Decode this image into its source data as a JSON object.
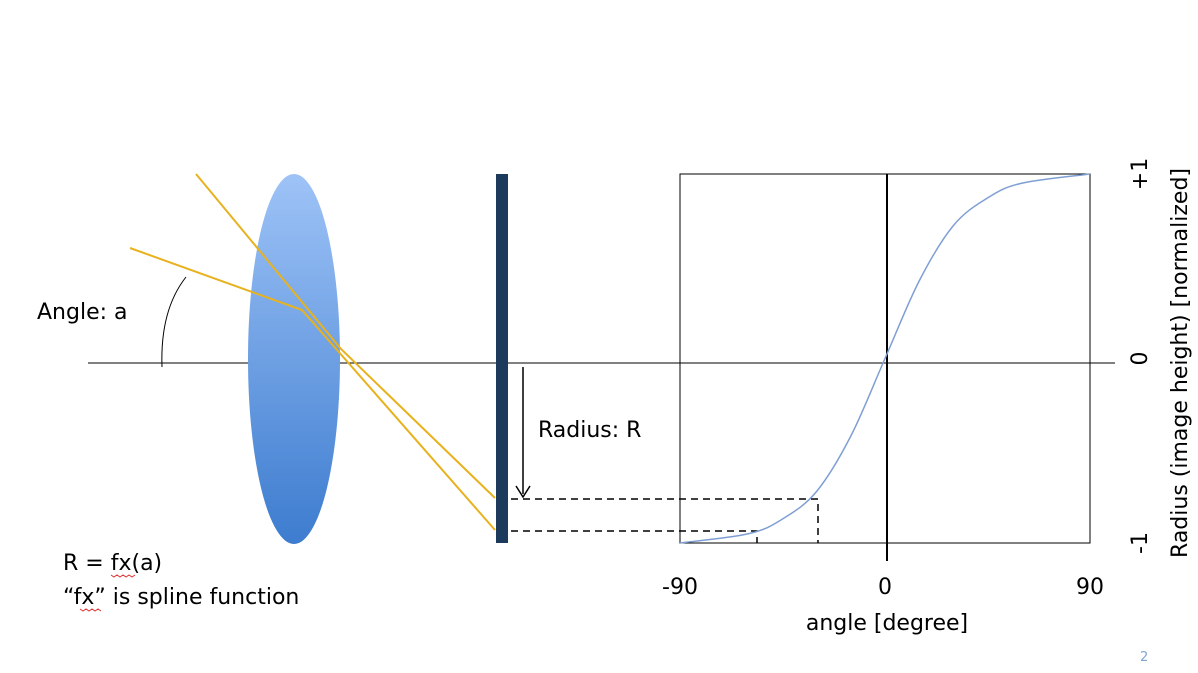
{
  "slide": {
    "page_number": "2",
    "angle_label": "Angle: a",
    "radius_label": "Radius: R",
    "formula": {
      "line1_prefix": "R = ",
      "line1_fx": "fx",
      "line1_suffix": "(a)",
      "line2_open": "“",
      "line2_fx": "fx",
      "line2_rest": "” is spline function"
    }
  },
  "chart_data": {
    "type": "line",
    "xlabel": "angle [degree]",
    "ylabel": "Radius (image height) [normalized]",
    "xlim": [
      -90,
      90
    ],
    "ylim": [
      -1,
      1
    ],
    "x_tick_labels": [
      "-90",
      "0",
      "90"
    ],
    "y_tick_labels": [
      "-1",
      "0",
      "+1"
    ],
    "series": [
      {
        "x": [
          -90,
          -60,
          -45,
          -30,
          -15,
          0,
          15,
          30,
          45,
          60,
          90
        ],
        "y": [
          -1.0,
          -0.95,
          -0.87,
          -0.72,
          -0.42,
          0.0,
          0.42,
          0.72,
          0.87,
          0.95,
          1.0
        ],
        "color": "#7f9fd4"
      }
    ],
    "markers": [
      {
        "x": -57,
        "y": -0.95
      },
      {
        "x": -30,
        "y": -0.75
      }
    ]
  },
  "colors": {
    "ray": "#e8b21f",
    "sensor": "#1b3a5c",
    "lens_top": "#9ec3f7",
    "lens_bottom": "#3d7ccf",
    "curve": "#7f9fd4"
  }
}
